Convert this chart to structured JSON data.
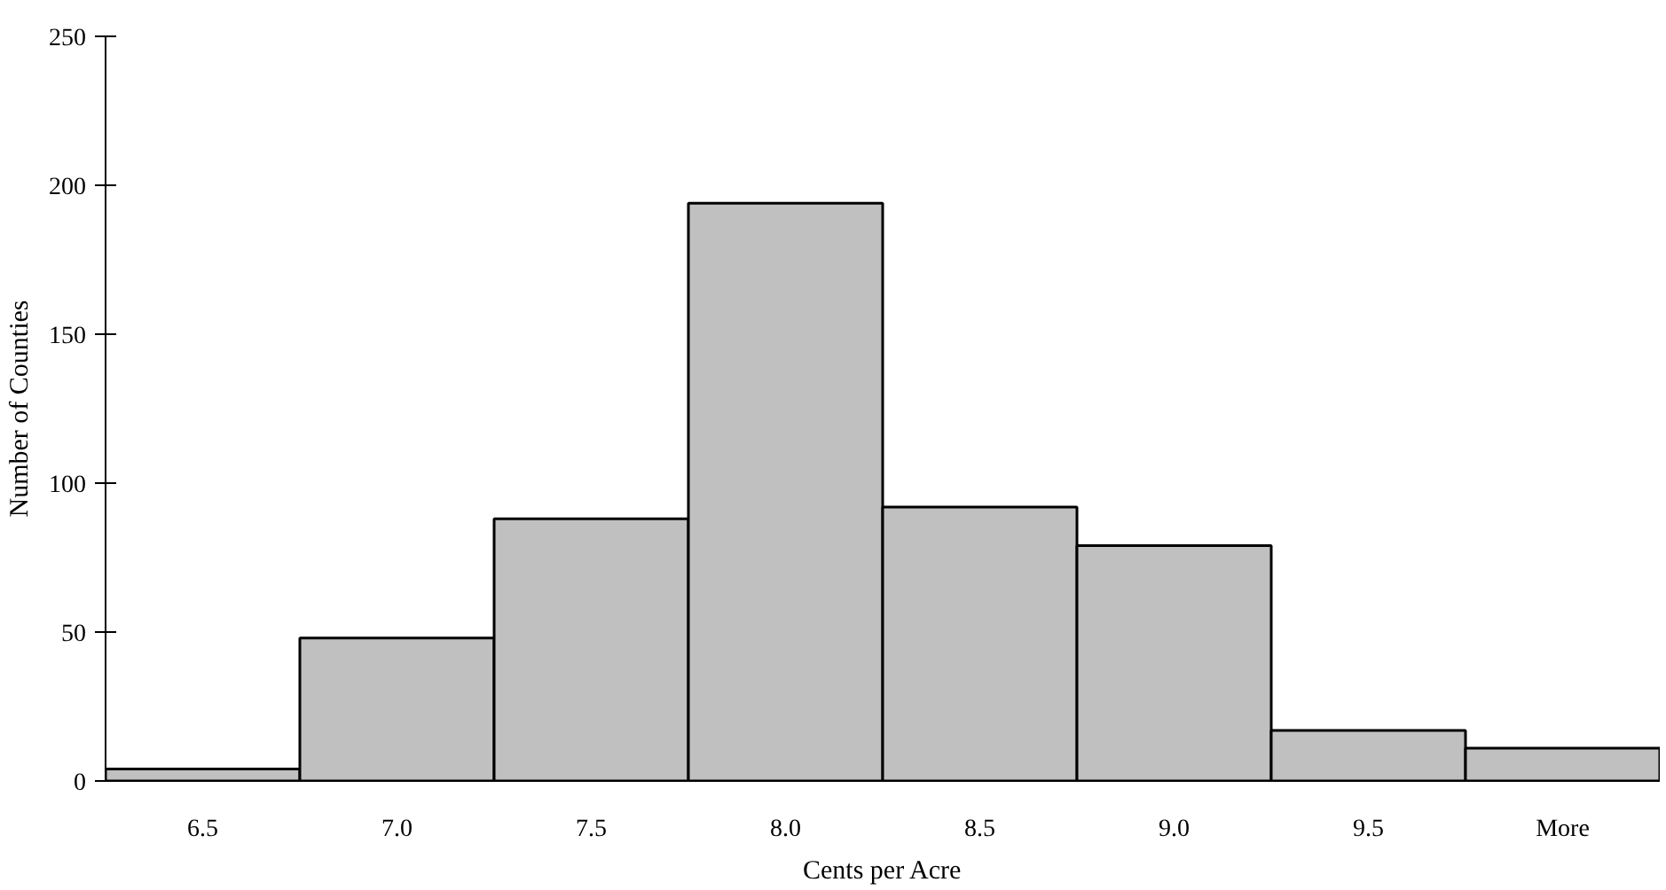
{
  "chart_data": {
    "type": "bar",
    "xlabel": "Cents per Acre",
    "ylabel": "Number of Counties",
    "categories": [
      "6.5",
      "7.0",
      "7.5",
      "8.0",
      "8.5",
      "9.0",
      "9.5",
      "More"
    ],
    "values": [
      4,
      48,
      88,
      194,
      92,
      79,
      17,
      11
    ],
    "color": "#c0c0c0",
    "ylim": [
      0,
      250
    ],
    "yticks": [
      0,
      50,
      100,
      150,
      200,
      250
    ],
    "grid": false
  }
}
